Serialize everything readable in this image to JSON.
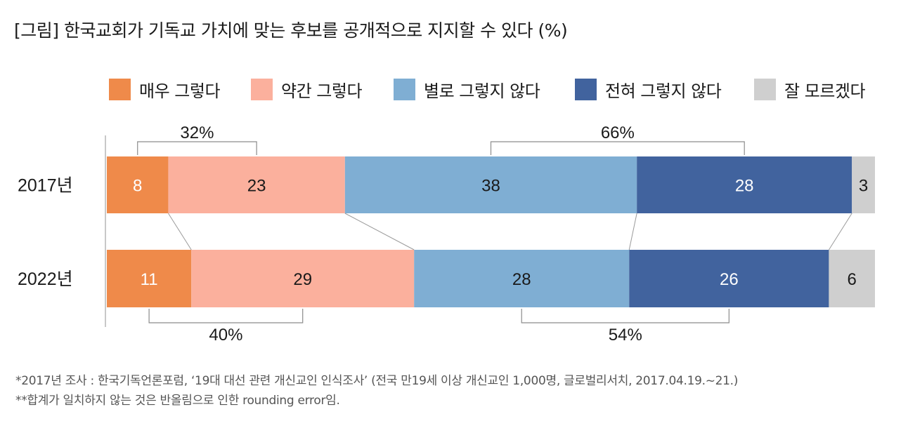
{
  "title": "[그림] 한국교회가 기독교 가치에 맞는 후보를 공개적으로 지지할 수 있다 (%)",
  "footnotes": [
    "*2017년 조사 : 한국기독언론포럼, ‘19대 대선 관련 개신교인 인식조사’ (전국 만19세 이상 개신교인 1,000명, 글로벌리서치, 2017.04.19.~21.)",
    "**합계가 일치하지 않는 것은 반올림으로 인한 rounding error임."
  ],
  "chart_data": {
    "type": "bar",
    "orientation": "horizontal",
    "stacked": true,
    "title": "[그림] 한국교회가 기독교 가치에 맞는 후보를 공개적으로 지지할 수 있다 (%)",
    "categories": [
      "2017년",
      "2022년"
    ],
    "series": [
      {
        "name": "매우 그렇다",
        "color": "#ef8a4a",
        "label_color": "#ffffff",
        "values": [
          8,
          11
        ]
      },
      {
        "name": "약간 그렇다",
        "color": "#fbb09d",
        "label_color": "#1a1a1a",
        "values": [
          23,
          29
        ]
      },
      {
        "name": "별로 그렇지 않다",
        "color": "#7faed3",
        "label_color": "#1a1a1a",
        "values": [
          38,
          28
        ]
      },
      {
        "name": "전혀 그렇지 않다",
        "color": "#41639e",
        "label_color": "#ffffff",
        "values": [
          28,
          26
        ]
      },
      {
        "name": "잘 모르겠다",
        "color": "#cfcfcf",
        "label_color": "#1a1a1a",
        "values": [
          3,
          6
        ]
      }
    ],
    "brackets": [
      {
        "label": "32%",
        "category": "2017년",
        "from": 0,
        "to": 1,
        "side": "top"
      },
      {
        "label": "66%",
        "category": "2017년",
        "from": 2,
        "to": 3,
        "side": "top"
      },
      {
        "label": "40%",
        "category": "2022년",
        "from": 0,
        "to": 1,
        "side": "bottom"
      },
      {
        "label": "54%",
        "category": "2022년",
        "from": 2,
        "to": 3,
        "side": "bottom"
      }
    ],
    "xlim": [
      0,
      100
    ],
    "legend_position": "top",
    "grid": false
  }
}
